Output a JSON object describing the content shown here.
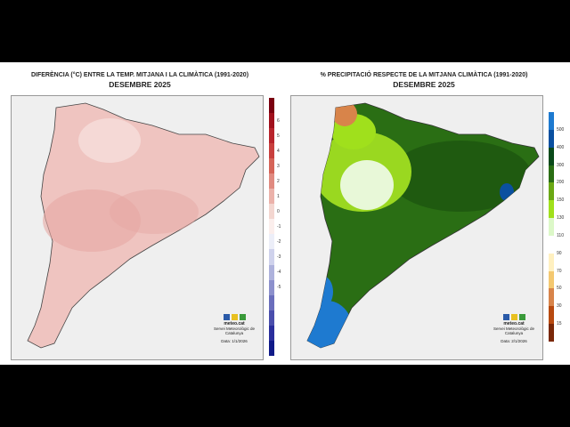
{
  "left_panel": {
    "title": "DIFERÈNCIA (°C) ENTRE LA TEMP. MITJANA I LA CLIMÀTICA (1991-2020)",
    "subtitle": "DESEMBRE 2025",
    "legend_labels": [
      "6",
      "5",
      "4",
      "3",
      "2",
      "1",
      "0",
      "-1",
      "-2",
      "-3",
      "-4",
      "-5"
    ],
    "legend_colors": [
      "#7a0010",
      "#a0101c",
      "#b8242c",
      "#c8403e",
      "#d56458",
      "#e08a80",
      "#ebb2aa",
      "#f3d6d0",
      "#fbeeec",
      "#eceef8",
      "#cfd2ec",
      "#aeb2dc",
      "#8c90cc",
      "#6a6ebc",
      "#4a4eac",
      "#2a2e9c",
      "#101a88"
    ],
    "fill_color": "#efc4c0",
    "logo_text": "meteo.cat",
    "org": "Servei Meteorològic de Catalunya",
    "date": "Data: 1/1/2026"
  },
  "right_panel": {
    "title": "% PRECIPITACIÓ RESPECTE DE LA MITJANA CLIMÀTICA (1991-2020)",
    "subtitle": "DESEMBRE 2025",
    "legend_labels": [
      "500",
      "400",
      "300",
      "200",
      "150",
      "130",
      "110",
      "90",
      "70",
      "50",
      "30",
      "15"
    ],
    "legend_colors": [
      "#1e7ad0",
      "#0a50a0",
      "#0a4a1a",
      "#2a6e14",
      "#6aa814",
      "#a0e01c",
      "#dcf8c8",
      "#ffffff",
      "#fff0c0",
      "#f4c870",
      "#d8844a",
      "#b84a10",
      "#7a2808"
    ],
    "logo_text": "meteo.cat",
    "org": "Servei Meteorològic de Catalunya",
    "date": "Data: 2/1/2026"
  }
}
